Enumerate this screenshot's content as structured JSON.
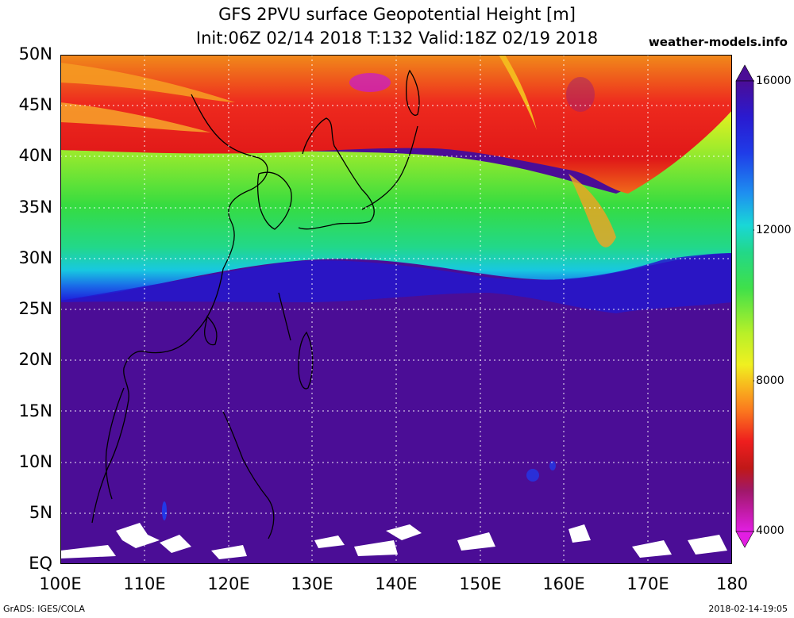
{
  "title_line1": "GFS 2PVU surface Geopotential Height [m]",
  "title_line2": "Init:06Z 02/14 2018 T:132 Valid:18Z 02/19 2018",
  "site": "weather-models.info",
  "y_axis_labels": [
    "50N",
    "45N",
    "40N",
    "35N",
    "30N",
    "25N",
    "20N",
    "15N",
    "10N",
    "5N",
    "EQ"
  ],
  "x_axis_labels": [
    "100E",
    "110E",
    "120E",
    "130E",
    "140E",
    "150E",
    "160E",
    "170E",
    "180"
  ],
  "colorbar_labels": [
    "16000",
    "12000",
    "8000",
    "4000"
  ],
  "footer_left": "GrADS: IGES/COLA",
  "footer_right": "2018-02-14-19:05",
  "colors": {
    "tropics_purple": "#4b0d96",
    "blue": "#1f1fdc",
    "cyan": "#19d7d7",
    "green": "#3fe04a",
    "yellow_green": "#b8f028",
    "orange": "#fb9b1e",
    "red": "#ee1e1e",
    "dark_red": "#c01818",
    "magenta": "#c81dc8"
  }
}
